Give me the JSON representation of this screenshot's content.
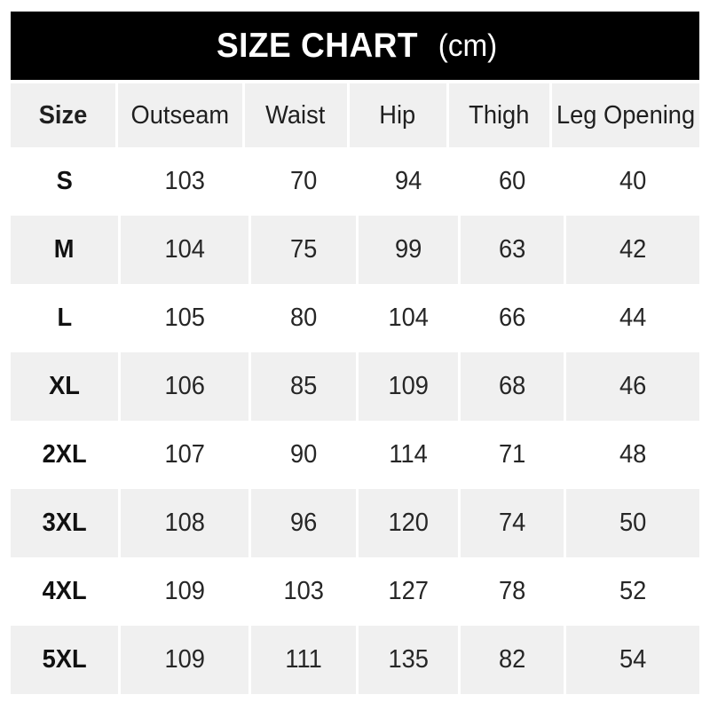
{
  "banner": {
    "title": "SIZE CHART",
    "unit": "(cm)"
  },
  "colors": {
    "banner_bg": "#000000",
    "banner_text": "#ffffff",
    "stripe": "#f0f0f0"
  },
  "chart_data": {
    "type": "table",
    "title": "SIZE CHART (cm)",
    "unit": "cm",
    "columns": [
      "Size",
      "Outseam",
      "Waist",
      "Hip",
      "Thigh",
      "Leg Opening"
    ],
    "rows": [
      [
        "S",
        "103",
        "70",
        "94",
        "60",
        "40"
      ],
      [
        "M",
        "104",
        "75",
        "99",
        "63",
        "42"
      ],
      [
        "L",
        "105",
        "80",
        "104",
        "66",
        "44"
      ],
      [
        "XL",
        "106",
        "85",
        "109",
        "68",
        "46"
      ],
      [
        "2XL",
        "107",
        "90",
        "114",
        "71",
        "48"
      ],
      [
        "3XL",
        "108",
        "96",
        "120",
        "74",
        "50"
      ],
      [
        "4XL",
        "109",
        "103",
        "127",
        "78",
        "52"
      ],
      [
        "5XL",
        "109",
        "111",
        "135",
        "82",
        "54"
      ]
    ],
    "layout": {
      "striped_rows": [
        "header",
        "M",
        "XL",
        "3XL",
        "5XL"
      ],
      "grid": "off",
      "legend": "none"
    }
  }
}
